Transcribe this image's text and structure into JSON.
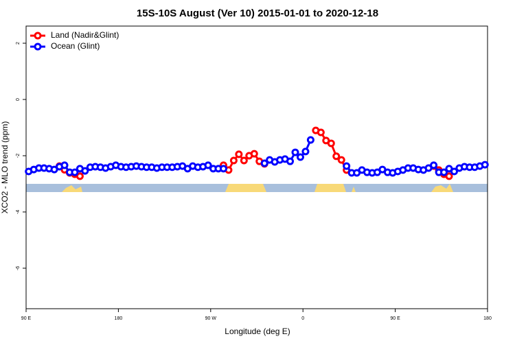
{
  "chart_data": {
    "type": "line",
    "title": "15S-10S August (Ver 10)   2015-01-01 to 2020-12-18",
    "x_label": "Longitude (deg E)",
    "y_label": "XCO2 - MLO trend (ppm)",
    "xlim": [
      90,
      540
    ],
    "ylim": [
      -7.44,
      2.61
    ],
    "xticks": [
      {
        "value": 90,
        "label": "90 E"
      },
      180,
      {
        "value": 270,
        "label": "90 W"
      },
      {
        "value": 360,
        "label": "0"
      },
      {
        "value": 450,
        "label": "90 E"
      },
      {
        "value": 540,
        "label": "180"
      }
    ],
    "yticks": [
      -6,
      -4,
      -2,
      0,
      2
    ],
    "legend": "top-left",
    "series": [
      {
        "name": "Land (Nadir&Glint)",
        "color": "#ff0000",
        "x": [
          122.5,
          127.5,
          132.5,
          137.5,
          142.5,
          200,
          282.5,
          287.5,
          292.5,
          297.5,
          302.5,
          307.5,
          312.5,
          317.5,
          322.5,
          350,
          372.5,
          377.5,
          382.5,
          387.5,
          392.5,
          397.5,
          402.5,
          450,
          487.5,
          492.5,
          497.5,
          502.5
        ],
        "values": [
          -2.37,
          -2.5,
          -2.61,
          -2.66,
          -2.73,
          null,
          -2.34,
          -2.51,
          -2.17,
          -1.95,
          -2.17,
          -2.0,
          -1.93,
          -2.2,
          -2.29,
          null,
          -1.1,
          -1.17,
          -1.46,
          -1.56,
          -2.02,
          -2.15,
          -2.51,
          null,
          -2.37,
          -2.51,
          -2.66,
          -2.73
        ]
      },
      {
        "name": "Ocean (Glint)",
        "color": "#0000ff",
        "x": [
          92.5,
          97.5,
          102.5,
          107.5,
          112.5,
          117.5,
          122.5,
          127.5,
          132.5,
          137.5,
          142.5,
          147.5,
          152.5,
          157.5,
          162.5,
          167.5,
          172.5,
          177.5,
          182.5,
          187.5,
          192.5,
          197.5,
          202.5,
          207.5,
          212.5,
          217.5,
          222.5,
          227.5,
          232.5,
          237.5,
          242.5,
          247.5,
          252.5,
          257.5,
          262.5,
          267.5,
          272.5,
          277.5,
          282.5,
          300,
          322.5,
          327.5,
          332.5,
          337.5,
          342.5,
          347.5,
          352.5,
          357.5,
          362.5,
          367.5,
          385,
          402.5,
          407.5,
          412.5,
          417.5,
          422.5,
          427.5,
          432.5,
          437.5,
          442.5,
          447.5,
          452.5,
          457.5,
          462.5,
          467.5,
          472.5,
          477.5,
          482.5,
          487.5,
          492.5,
          497.5,
          502.5,
          507.5,
          512.5,
          517.5,
          522.5,
          527.5,
          532.5,
          537.5
        ],
        "values": [
          -2.56,
          -2.49,
          -2.44,
          -2.44,
          -2.46,
          -2.49,
          -2.39,
          -2.34,
          -2.59,
          -2.59,
          -2.46,
          -2.54,
          -2.41,
          -2.39,
          -2.41,
          -2.44,
          -2.39,
          -2.34,
          -2.39,
          -2.41,
          -2.39,
          -2.37,
          -2.39,
          -2.41,
          -2.41,
          -2.44,
          -2.41,
          -2.41,
          -2.41,
          -2.39,
          -2.37,
          -2.46,
          -2.37,
          -2.41,
          -2.39,
          -2.34,
          -2.46,
          -2.46,
          -2.46,
          null,
          -2.27,
          -2.15,
          -2.22,
          -2.15,
          -2.12,
          -2.2,
          -1.88,
          -2.05,
          -1.85,
          -1.44,
          null,
          -2.37,
          -2.61,
          -2.61,
          -2.51,
          -2.59,
          -2.61,
          -2.59,
          -2.49,
          -2.59,
          -2.61,
          -2.56,
          -2.51,
          -2.44,
          -2.44,
          -2.49,
          -2.51,
          -2.44,
          -2.34,
          -2.59,
          -2.59,
          -2.46,
          -2.56,
          -2.44,
          -2.39,
          -2.41,
          -2.41,
          -2.37,
          -2.32
        ]
      }
    ]
  }
}
